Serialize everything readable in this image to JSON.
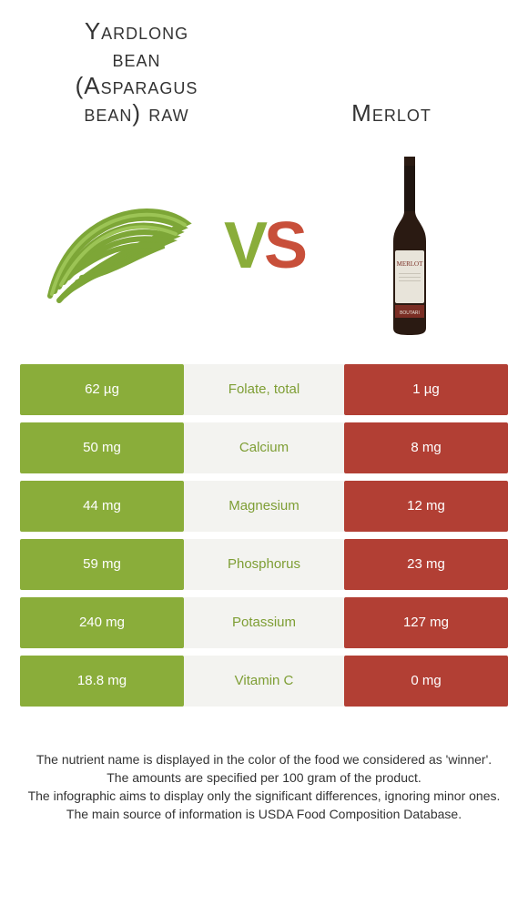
{
  "colors": {
    "green": "#8aad3a",
    "red": "#b23f34",
    "mid_bg": "#f3f3f0",
    "nut_green": "#7e9e34",
    "nut_red": "#a83a30"
  },
  "header": {
    "left_line1": "Yardlong",
    "left_line2": "bean",
    "left_line3": "(Asparagus",
    "left_line4": "bean) raw",
    "right": "Merlot"
  },
  "vs": {
    "v": "V",
    "s": "S"
  },
  "rows": [
    {
      "l": "62 µg",
      "m": "Folate, total",
      "r": "1 µg",
      "winner": "green"
    },
    {
      "l": "50 mg",
      "m": "Calcium",
      "r": "8 mg",
      "winner": "green"
    },
    {
      "l": "44 mg",
      "m": "Magnesium",
      "r": "12 mg",
      "winner": "green"
    },
    {
      "l": "59 mg",
      "m": "Phosphorus",
      "r": "23 mg",
      "winner": "green"
    },
    {
      "l": "240 mg",
      "m": "Potassium",
      "r": "127 mg",
      "winner": "green"
    },
    {
      "l": "18.8 mg",
      "m": "Vitamin C",
      "r": "0 mg",
      "winner": "green"
    }
  ],
  "footer": {
    "p1": "The nutrient name is displayed in the color of the food we considered as 'winner'.",
    "p2": "The amounts are specified per 100 gram of the product.",
    "p3": "The infographic aims to display only the significant differences, ignoring minor ones.",
    "p4": "The main source of information is USDA Food Composition Database."
  }
}
